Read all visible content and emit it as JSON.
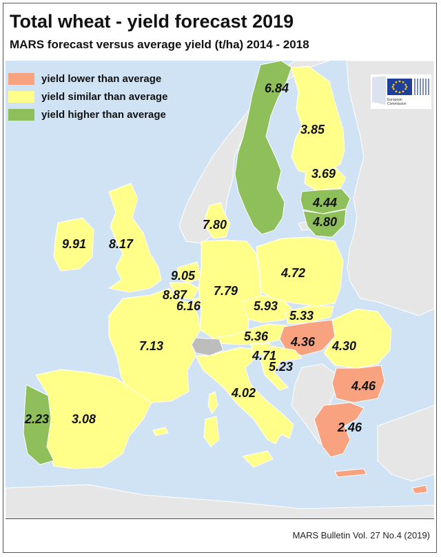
{
  "title": "Total wheat - yield forecast 2019",
  "subtitle": "MARS forecast versus average yield (t/ha) 2014 - 2018",
  "legend": [
    {
      "label": "yield lower than average",
      "color": "#f9a27f"
    },
    {
      "label": "yield similar than average",
      "color": "#ffff8a"
    },
    {
      "label": "yield higher than average",
      "color": "#8fbf5a"
    }
  ],
  "logo": {
    "line1": "European",
    "line2": "Commission"
  },
  "credit": "MARS Bulletin Vol. 27 No.4 (2019)",
  "colors": {
    "sea": "#cfe3f5",
    "non_eu_land": "#e6e6e6",
    "lower": "#f9a27f",
    "similar": "#ffff8a",
    "higher": "#8fbf5a",
    "switzerland": "#bdbdbd",
    "border": "#ffffff",
    "eu_flag": "#1f3f9a",
    "eu_stars": "#ffcc00"
  },
  "countries": [
    {
      "name": "Sweden",
      "value": "6.84",
      "class": "higher"
    },
    {
      "name": "Finland",
      "value": "3.85",
      "class": "similar"
    },
    {
      "name": "Estonia",
      "value": "3.69",
      "class": "similar"
    },
    {
      "name": "Latvia",
      "value": "4.44",
      "class": "higher"
    },
    {
      "name": "Lithuania",
      "value": "4.80",
      "class": "higher"
    },
    {
      "name": "Denmark",
      "value": "7.80",
      "class": "similar"
    },
    {
      "name": "Ireland",
      "value": "9.91",
      "class": "similar"
    },
    {
      "name": "United Kingdom",
      "value": "8.17",
      "class": "similar"
    },
    {
      "name": "Netherlands",
      "value": "9.05",
      "class": "similar"
    },
    {
      "name": "Belgium",
      "value": "8.87",
      "class": "similar"
    },
    {
      "name": "Luxembourg",
      "value": "6.16",
      "class": "similar"
    },
    {
      "name": "Germany",
      "value": "7.79",
      "class": "similar"
    },
    {
      "name": "Poland",
      "value": "4.72",
      "class": "similar"
    },
    {
      "name": "Czechia",
      "value": "5.93",
      "class": "similar"
    },
    {
      "name": "Slovakia",
      "value": "5.33",
      "class": "similar"
    },
    {
      "name": "Austria",
      "value": "5.36",
      "class": "similar"
    },
    {
      "name": "Hungary",
      "value": "4.36",
      "class": "lower"
    },
    {
      "name": "Romania",
      "value": "4.30",
      "class": "similar"
    },
    {
      "name": "France",
      "value": "7.13",
      "class": "similar"
    },
    {
      "name": "Slovenia",
      "value": "4.71",
      "class": "similar"
    },
    {
      "name": "Croatia",
      "value": "5.23",
      "class": "similar"
    },
    {
      "name": "Italy",
      "value": "4.02",
      "class": "similar"
    },
    {
      "name": "Bulgaria",
      "value": "4.46",
      "class": "lower"
    },
    {
      "name": "Greece",
      "value": "2.46",
      "class": "lower"
    },
    {
      "name": "Portugal",
      "value": "2.23",
      "class": "higher"
    },
    {
      "name": "Spain",
      "value": "3.08",
      "class": "similar"
    }
  ]
}
